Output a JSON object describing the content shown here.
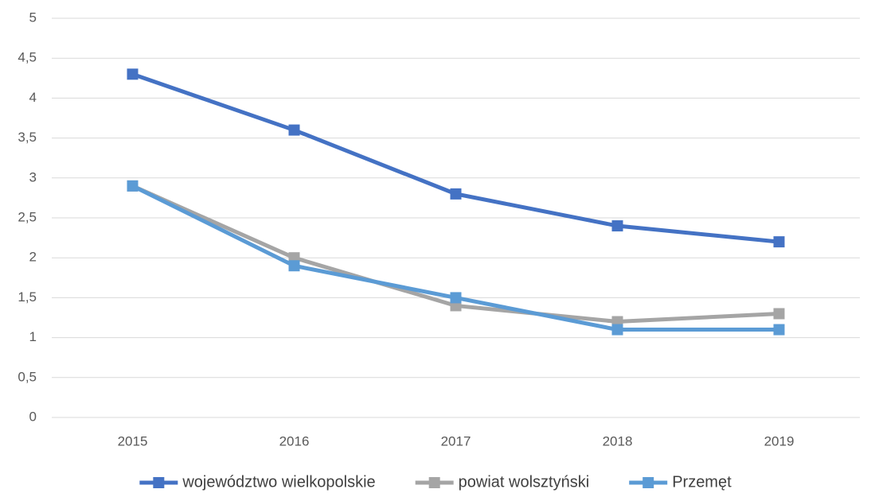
{
  "chart_data": {
    "type": "line",
    "categories": [
      "2015",
      "2016",
      "2017",
      "2018",
      "2019"
    ],
    "series": [
      {
        "name": "województwo wielkopolskie",
        "color": "#4472c4",
        "values": [
          4.3,
          3.6,
          2.8,
          2.4,
          2.2
        ]
      },
      {
        "name": "powiat wolsztyński",
        "color": "#a5a5a5",
        "values": [
          2.9,
          2.0,
          1.4,
          1.2,
          1.3
        ]
      },
      {
        "name": "Przemęt",
        "color": "#5b9bd5",
        "values": [
          2.9,
          1.9,
          1.5,
          1.1,
          1.1
        ]
      }
    ],
    "ylim": [
      0,
      5
    ],
    "yticks": [
      0,
      {
        "value": 0.5,
        "label": "0,5"
      },
      1,
      {
        "value": 1.5,
        "label": "1,5"
      },
      2,
      {
        "value": 2.5,
        "label": "2,5"
      },
      3,
      {
        "value": 3.5,
        "label": "3,5"
      },
      4,
      {
        "value": 4.5,
        "label": "4,5"
      },
      5
    ],
    "grid": true,
    "legend": "bottom"
  }
}
